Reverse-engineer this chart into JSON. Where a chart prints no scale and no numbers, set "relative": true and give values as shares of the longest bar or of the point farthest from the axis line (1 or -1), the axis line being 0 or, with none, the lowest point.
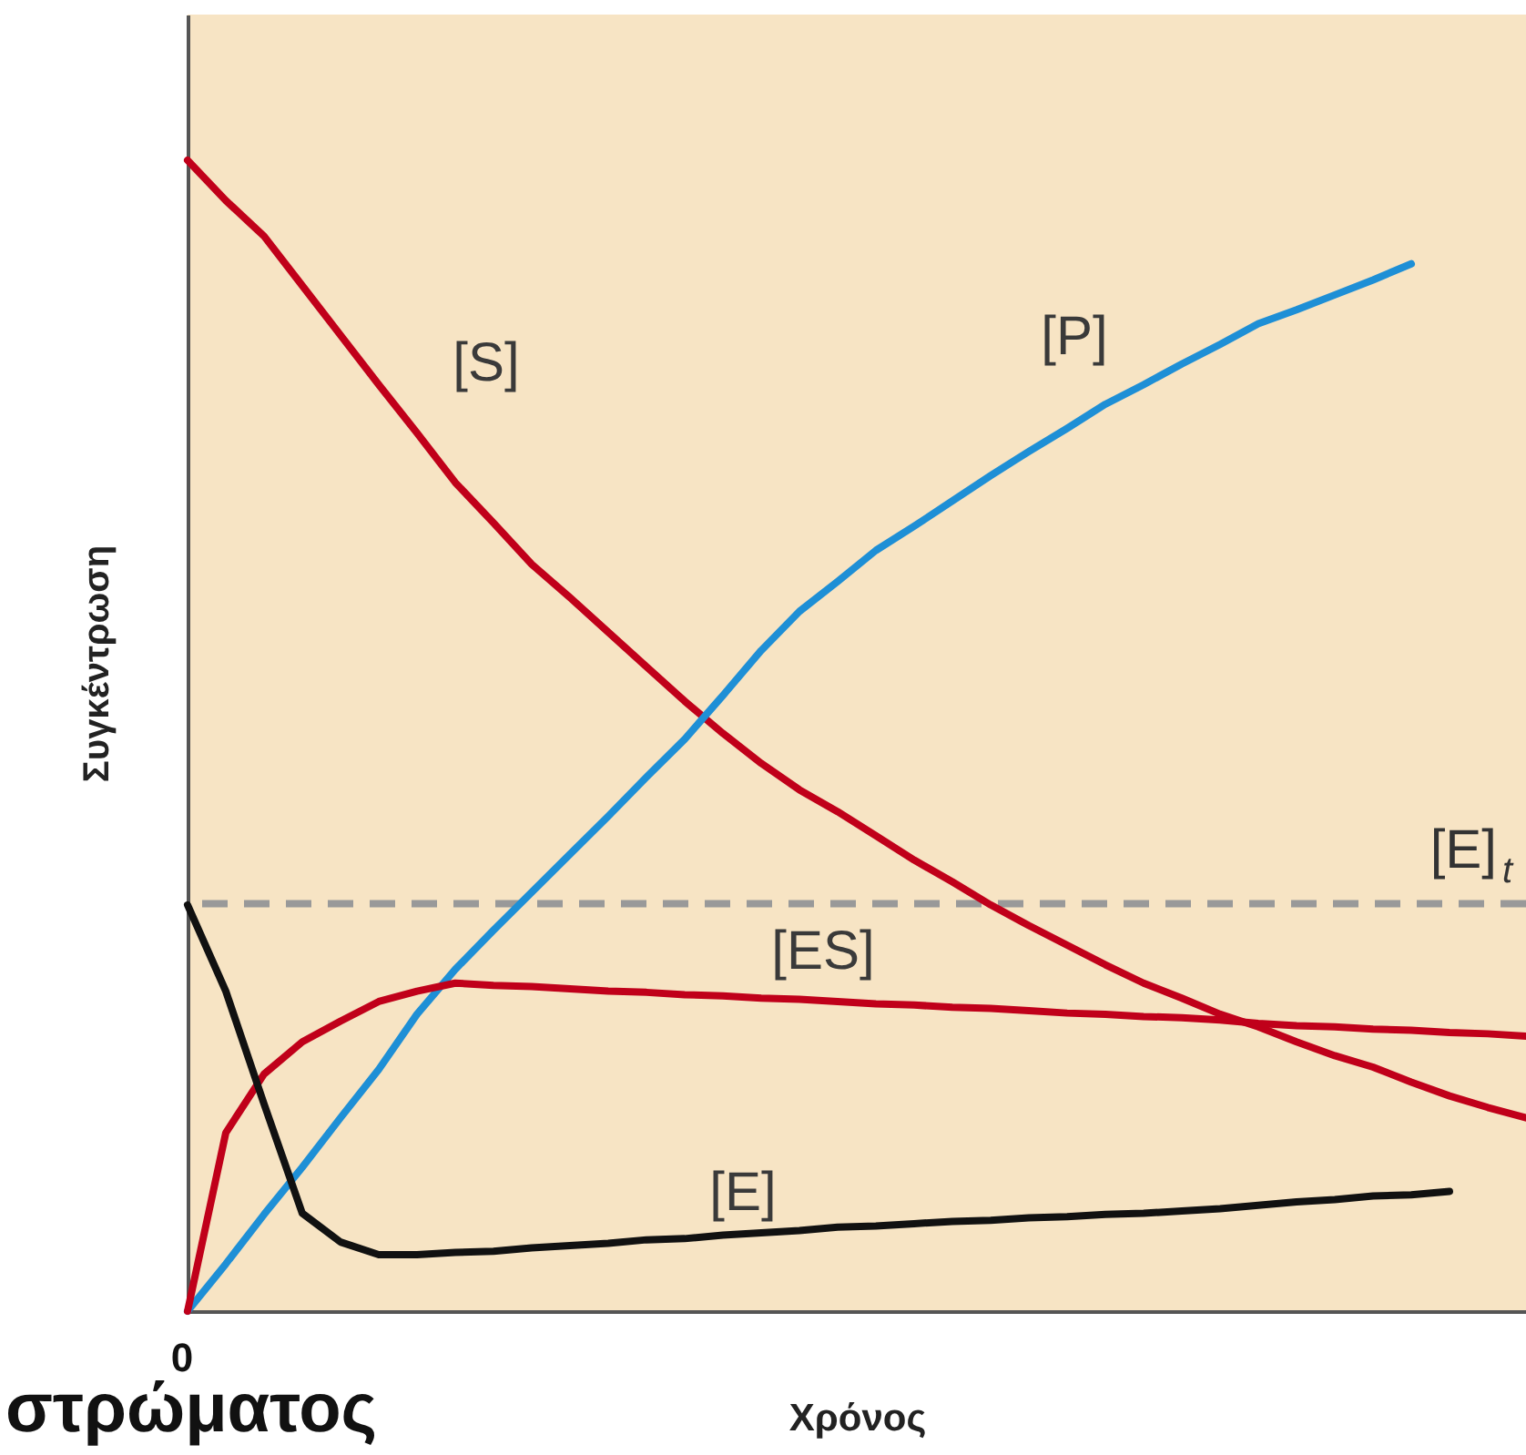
{
  "chart_data": {
    "type": "line",
    "relative": true,
    "xlabel": "Χρόνος",
    "ylabel": "Συγκέντρωση",
    "categories": [
      null,
      null,
      null,
      null,
      null,
      null,
      null,
      null,
      null,
      null,
      null,
      null,
      null,
      null,
      null,
      null,
      null,
      null,
      null,
      null,
      null,
      null,
      null,
      null,
      null,
      null,
      null,
      null,
      null,
      null,
      null,
      null,
      null,
      null,
      null,
      null
    ],
    "series": [
      {
        "name": "[S]",
        "color": "#c0001a",
        "values": [
          1.0,
          0.965,
          0.934,
          0.891,
          0.848,
          0.805,
          0.763,
          0.72,
          0.685,
          0.649,
          0.62,
          0.59,
          0.56,
          0.53,
          0.502,
          0.476,
          0.453,
          0.434,
          0.413,
          0.392,
          0.373,
          0.353,
          0.335,
          0.318,
          0.301,
          0.285,
          0.272,
          0.258,
          0.247,
          0.234,
          0.222,
          0.212,
          0.199,
          0.187,
          0.177,
          0.168
        ]
      },
      {
        "name": "[P]",
        "color": "#1e8fd6",
        "values": [
          0,
          0.041,
          0.084,
          0.125,
          0.168,
          0.21,
          0.258,
          0.297,
          0.331,
          0.364,
          0.397,
          0.43,
          0.464,
          0.497,
          0.535,
          0.574,
          0.608,
          0.634,
          0.661,
          0.682,
          0.704,
          0.726,
          0.747,
          0.767,
          0.788,
          0.805,
          0.823,
          0.84,
          0.858,
          0.87,
          0.883,
          0.896,
          0.91,
          null,
          null,
          null
        ]
      },
      {
        "name": "[ES]",
        "color": "#c0001a",
        "values": [
          0,
          0.155,
          0.206,
          0.234,
          0.252,
          0.269,
          0.278,
          0.285,
          0.283,
          0.282,
          0.28,
          0.278,
          0.277,
          0.275,
          0.274,
          0.272,
          0.271,
          0.269,
          0.267,
          0.266,
          0.264,
          0.263,
          0.261,
          0.259,
          0.258,
          0.256,
          0.255,
          0.253,
          0.25,
          0.248,
          0.247,
          0.245,
          0.244,
          0.242,
          0.241,
          0.239
        ]
      },
      {
        "name": "[E]",
        "color": "#111111",
        "values": [
          0.353,
          0.278,
          0.18,
          0.085,
          0.06,
          0.049,
          0.049,
          0.051,
          0.052,
          0.055,
          0.057,
          0.059,
          0.062,
          0.063,
          0.066,
          0.068,
          0.07,
          0.073,
          0.074,
          0.076,
          0.078,
          0.079,
          0.081,
          0.082,
          0.084,
          0.085,
          0.087,
          0.089,
          0.092,
          0.095,
          0.097,
          0.1,
          0.101,
          0.104,
          null,
          null
        ]
      }
    ],
    "ref_lines": [
      {
        "axis": "y",
        "value": 0.354,
        "label": "[E]$_{t}$",
        "color": "#999999",
        "line_style": "dashed"
      }
    ],
    "annotations": [
      "0",
      "στρώματος"
    ],
    "grid": false,
    "marker": "none",
    "line_style": "solid"
  }
}
